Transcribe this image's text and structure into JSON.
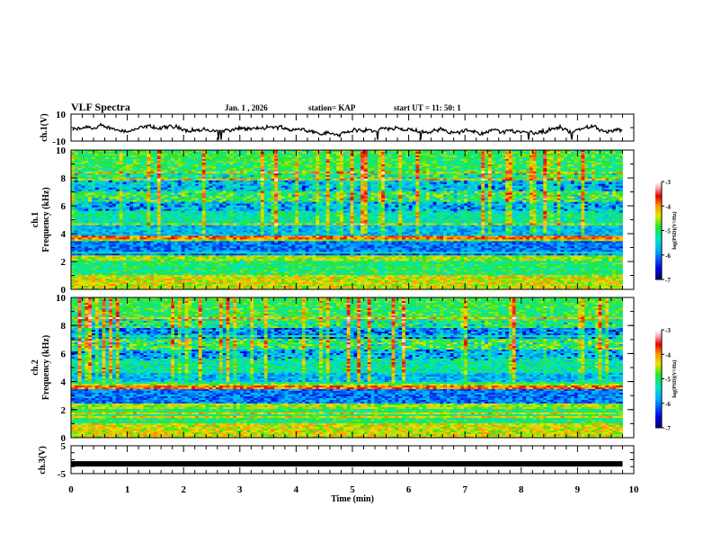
{
  "header": {
    "title": "VLF Spectra",
    "date": "Jan. 1 , 2026",
    "station": "station= KAP",
    "start": "start  UT =   11: 50: 1"
  },
  "chart_data": [
    {
      "type": "line",
      "name": "ch1-waveform",
      "ylabel": "ch.1(V)",
      "ylim": [
        -10,
        10
      ],
      "yticks": [
        "10",
        "-10"
      ],
      "xlim": [
        0,
        10
      ],
      "data_end_min": 9.8,
      "description": "noisy waveform oscillating roughly between -7 and 3 V"
    },
    {
      "type": "heatmap",
      "name": "ch1-spectrogram",
      "ylabel_channel": "ch.1",
      "ylabel": "Frequency (kHz)",
      "ylim": [
        0,
        10
      ],
      "yticks": [
        "0",
        "2",
        "4",
        "6",
        "8",
        "10"
      ],
      "xlim": [
        0,
        10
      ],
      "colorbar": {
        "label": "log(PSD)(V²/Hz)",
        "range": [
          -7,
          -3
        ],
        "ticks": [
          "-3",
          "-4",
          "-5",
          "-6",
          "-7"
        ]
      }
    },
    {
      "type": "heatmap",
      "name": "ch2-spectrogram",
      "ylabel_channel": "ch.2",
      "ylabel": "Frequency (kHz)",
      "ylim": [
        0,
        10
      ],
      "yticks": [
        "0",
        "2",
        "4",
        "6",
        "8",
        "10"
      ],
      "xlim": [
        0,
        10
      ],
      "colorbar": {
        "label": "log(PSD)(V²/Hz)",
        "range": [
          -7,
          -3
        ],
        "ticks": [
          "-3",
          "-4",
          "-5",
          "-6",
          "-7"
        ]
      }
    },
    {
      "type": "line",
      "name": "ch3-waveform",
      "ylabel": "ch.3(V)",
      "ylim": [
        -5,
        5
      ],
      "yticks": [
        "5",
        "-5"
      ],
      "xlim": [
        0,
        10
      ],
      "xlabel": "Time (min)",
      "xticks": [
        "0",
        "1",
        "2",
        "3",
        "4",
        "5",
        "6",
        "7",
        "8",
        "9",
        "10"
      ],
      "level_v": -1.5,
      "description": "near-constant thick band around -1.5 V"
    }
  ]
}
